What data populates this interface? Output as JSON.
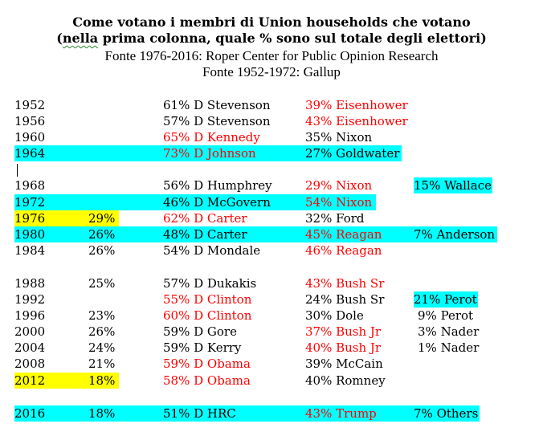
{
  "header": {
    "title_line1": "Come votano i membri di Union households che votano",
    "title_line2_pre": "(",
    "title_line2_flagged": "nella",
    "title_line2_post": " prima colonna, quale % sono sul totale degli elettori)",
    "source1": "Fonte 1976-2016: Roper Center for Public Opinion Research",
    "source2": "Fonte 1952-1972: Gallup"
  },
  "colors": {
    "republican_win_text": "#ff0000",
    "highlight_cyan": "#00ffff",
    "highlight_yellow": "#ffff00",
    "text": "#000000"
  },
  "rows": [
    {
      "year": "1952",
      "share": "",
      "dem": "61% D Stevenson",
      "dem_red": false,
      "rep": "39% Eisenhower",
      "rep_red": true,
      "other": ""
    },
    {
      "year": "1956",
      "share": "",
      "dem": "57% D Stevenson",
      "dem_red": false,
      "rep": "43% Eisenhower",
      "rep_red": true,
      "other": ""
    },
    {
      "year": "1960",
      "share": "",
      "dem": "65% D Kennedy",
      "dem_red": true,
      "rep": "35% Nixon",
      "rep_red": false,
      "other": ""
    },
    {
      "year": "1964",
      "share": "",
      "dem": "73% D Johnson",
      "dem_red": true,
      "rep": "27% Goldwater",
      "rep_red": false,
      "other": "",
      "highlight": "cyan-row"
    },
    {
      "year": "1968",
      "share": "",
      "dem": "56% D Humphrey",
      "dem_red": false,
      "rep": "29% Nixon",
      "rep_red": true,
      "other": "15% Wallace",
      "highlight": "cyan-other"
    },
    {
      "year": "1972",
      "share": "",
      "dem": "46% D McGovern",
      "dem_red": false,
      "rep": "54% Nixon",
      "rep_red": true,
      "other": "",
      "highlight": "cyan-row"
    },
    {
      "year": "1976",
      "share": "29%",
      "dem": "62% D Carter",
      "dem_red": true,
      "rep": "32% Ford",
      "rep_red": false,
      "other": "",
      "highlight": "yellow-year"
    },
    {
      "year": "1980",
      "share": "26%",
      "dem": "48% D Carter",
      "dem_red": false,
      "rep": "45% Reagan",
      "rep_red": true,
      "other": "7% Anderson",
      "highlight": "cyan-row"
    },
    {
      "year": "1984",
      "share": "26%",
      "dem": "54% D Mondale",
      "dem_red": false,
      "rep": "46% Reagan",
      "rep_red": true,
      "other": ""
    },
    {
      "year": "1988",
      "share": "25%",
      "dem": "57% D Dukakis",
      "dem_red": false,
      "rep": "43% Bush Sr",
      "rep_red": true,
      "other": ""
    },
    {
      "year": "1992",
      "share": "",
      "dem": "55% D Clinton",
      "dem_red": true,
      "rep": "24% Bush Sr",
      "rep_red": false,
      "other": "21% Perot",
      "highlight": "cyan-other"
    },
    {
      "year": "1996",
      "share": "23%",
      "dem": "60% D Clinton",
      "dem_red": true,
      "rep": "30% Dole",
      "rep_red": false,
      "other": "9% Perot"
    },
    {
      "year": "2000",
      "share": "26%",
      "dem": "59% D Gore",
      "dem_red": false,
      "rep": "37% Bush Jr",
      "rep_red": true,
      "other": "3% Nader"
    },
    {
      "year": "2004",
      "share": "24%",
      "dem": "59% D Kerry",
      "dem_red": false,
      "rep": "40% Bush Jr",
      "rep_red": true,
      "other": "1% Nader"
    },
    {
      "year": "2008",
      "share": "21%",
      "dem": "59% D Obama",
      "dem_red": true,
      "rep": "39% McCain",
      "rep_red": false,
      "other": ""
    },
    {
      "year": "2012",
      "share": "18%",
      "dem": "58% D Obama",
      "dem_red": true,
      "rep": "40% Romney",
      "rep_red": false,
      "other": "",
      "highlight": "yellow-year"
    },
    {
      "year": "2016",
      "share": "18%",
      "dem": "51% D HRC",
      "dem_red": false,
      "rep": "43% Trump",
      "rep_red": true,
      "other": "7% Others",
      "highlight": "cyan-row"
    }
  ]
}
